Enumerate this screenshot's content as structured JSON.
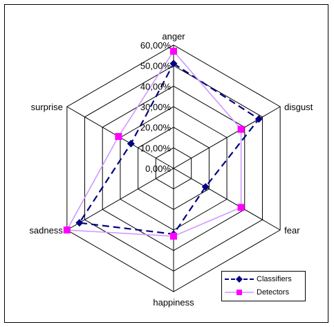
{
  "chart_data": {
    "type": "radar",
    "categories": [
      "anger",
      "disgust",
      "fear",
      "happiness",
      "sadness",
      "surprise"
    ],
    "tick_labels": [
      "0,00%",
      "10,00%",
      "20,00%",
      "30,00%",
      "40,00%",
      "50,00%",
      "60,00%"
    ],
    "rlim": [
      0,
      60
    ],
    "grid": true,
    "legend_position": "bottom-right",
    "series": [
      {
        "name": "Classifiers",
        "values": [
          51,
          48,
          18,
          32,
          53,
          24
        ],
        "color": "#000080",
        "line_style": "dashed",
        "marker": "diamond"
      },
      {
        "name": "Detectors",
        "values": [
          57,
          38,
          38,
          33,
          60,
          31
        ],
        "color": "#FF00FF",
        "line_color": "#CC99FF",
        "line_style": "solid",
        "marker": "square"
      }
    ]
  }
}
